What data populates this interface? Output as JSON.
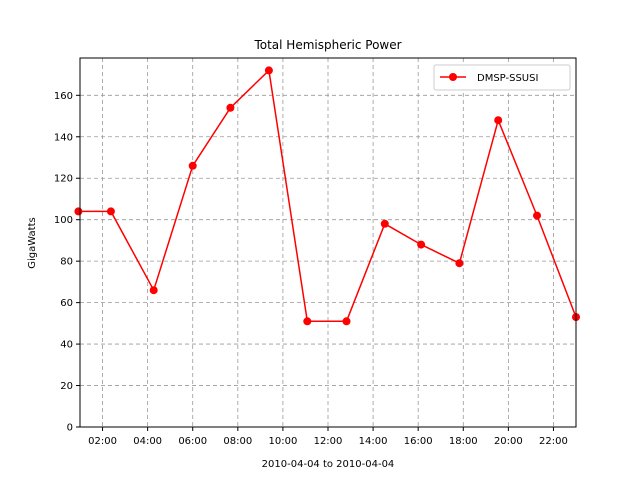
{
  "chart_data": {
    "type": "line",
    "title": "Total Hemispheric Power",
    "xlabel": "2010-04-04 to 2010-04-04",
    "ylabel": "GigaWatts",
    "x_tick_labels": [
      "02:00",
      "04:00",
      "06:00",
      "08:00",
      "10:00",
      "12:00",
      "14:00",
      "16:00",
      "18:00",
      "20:00",
      "22:00"
    ],
    "x_tick_hours": [
      2,
      4,
      6,
      8,
      10,
      12,
      14,
      16,
      18,
      20,
      22
    ],
    "x_range_hours": [
      1.0,
      23.0
    ],
    "y_ticks": [
      0,
      20,
      40,
      60,
      80,
      100,
      120,
      140,
      160
    ],
    "ylim": [
      0,
      178
    ],
    "grid": true,
    "legend_position": "upper right",
    "series": [
      {
        "name": "DMSP-SSUSI",
        "color": "#ff0000",
        "marker": "circle",
        "x": [
          "00:55",
          "02:22",
          "04:16",
          "06:00",
          "07:40",
          "09:23",
          "11:05",
          "12:49",
          "14:31",
          "16:08",
          "17:50",
          "19:33",
          "21:16",
          "23.00"
        ],
        "x_hours": [
          0.93,
          2.37,
          4.27,
          6.0,
          7.67,
          9.38,
          11.08,
          12.82,
          14.52,
          16.13,
          17.83,
          19.55,
          21.27,
          23.0
        ],
        "values": [
          104,
          104,
          66,
          126,
          154,
          172,
          51,
          51,
          98,
          88,
          79,
          148,
          102,
          53
        ]
      }
    ]
  }
}
